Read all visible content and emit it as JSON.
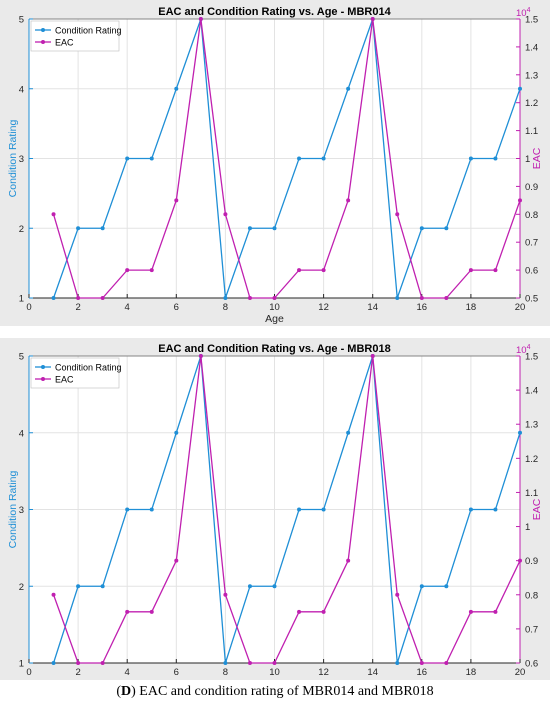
{
  "chart_data": [
    {
      "type": "line",
      "title": "EAC and Condition Rating vs. Age - MBR014",
      "xlabel": "Age",
      "ylabel_left": "Condition Rating",
      "ylabel_right": "EAC",
      "right_exponent_label": "10",
      "right_exponent": "4",
      "xlim": [
        0,
        20
      ],
      "xticks": [
        0,
        2,
        4,
        6,
        8,
        10,
        12,
        14,
        16,
        18,
        20
      ],
      "ylim_left": [
        1,
        5
      ],
      "yticks_left": [
        1,
        2,
        3,
        4,
        5
      ],
      "ylim_right": [
        0.5,
        1.5
      ],
      "yticks_right": [
        0.5,
        0.6,
        0.7,
        0.8,
        0.9,
        1,
        1.1,
        1.2,
        1.3,
        1.4,
        1.5
      ],
      "grid": true,
      "legend_position": "top-left",
      "x": [
        1,
        2,
        3,
        4,
        5,
        6,
        7,
        8,
        9,
        10,
        11,
        12,
        13,
        14,
        15,
        16,
        17,
        18,
        19,
        20
      ],
      "series": [
        {
          "name": "Condition Rating",
          "axis": "left",
          "color": "#1f8fd6",
          "values": [
            1,
            2,
            2,
            3,
            3,
            4,
            5,
            1,
            2,
            2,
            3,
            3,
            4,
            5,
            1,
            2,
            2,
            3,
            3,
            4
          ]
        },
        {
          "name": "EAC",
          "axis": "right",
          "color": "#c020b0",
          "values": [
            0.8,
            0.5,
            0.5,
            0.6,
            0.6,
            0.85,
            1.5,
            0.8,
            0.5,
            0.5,
            0.6,
            0.6,
            0.85,
            1.5,
            0.8,
            0.5,
            0.5,
            0.6,
            0.6,
            0.85
          ]
        }
      ]
    },
    {
      "type": "line",
      "title": "EAC and Condition Rating vs. Age - MBR018",
      "xlabel": "Age",
      "ylabel_left": "Condition Rating",
      "ylabel_right": "EAC",
      "right_exponent_label": "10",
      "right_exponent": "4",
      "xlim": [
        0,
        20
      ],
      "xticks": [
        0,
        2,
        4,
        6,
        8,
        10,
        12,
        14,
        16,
        18,
        20
      ],
      "ylim_left": [
        1,
        5
      ],
      "yticks_left": [
        1,
        2,
        3,
        4,
        5
      ],
      "ylim_right": [
        0.6,
        1.5
      ],
      "yticks_right": [
        0.6,
        0.7,
        0.8,
        0.9,
        1,
        1.1,
        1.2,
        1.3,
        1.4,
        1.5
      ],
      "grid": true,
      "legend_position": "top-left",
      "x": [
        1,
        2,
        3,
        4,
        5,
        6,
        7,
        8,
        9,
        10,
        11,
        12,
        13,
        14,
        15,
        16,
        17,
        18,
        19,
        20
      ],
      "series": [
        {
          "name": "Condition Rating",
          "axis": "left",
          "color": "#1f8fd6",
          "values": [
            1,
            2,
            2,
            3,
            3,
            4,
            5,
            1,
            2,
            2,
            3,
            3,
            4,
            5,
            1,
            2,
            2,
            3,
            3,
            4
          ]
        },
        {
          "name": "EAC",
          "axis": "right",
          "color": "#c020b0",
          "values": [
            0.8,
            0.6,
            0.6,
            0.75,
            0.75,
            0.9,
            1.5,
            0.8,
            0.6,
            0.6,
            0.75,
            0.75,
            0.9,
            1.5,
            0.8,
            0.6,
            0.6,
            0.75,
            0.75,
            0.9
          ]
        }
      ]
    }
  ],
  "caption": {
    "label": "D",
    "text": " EAC and condition rating of MBR014 and MBR018"
  }
}
